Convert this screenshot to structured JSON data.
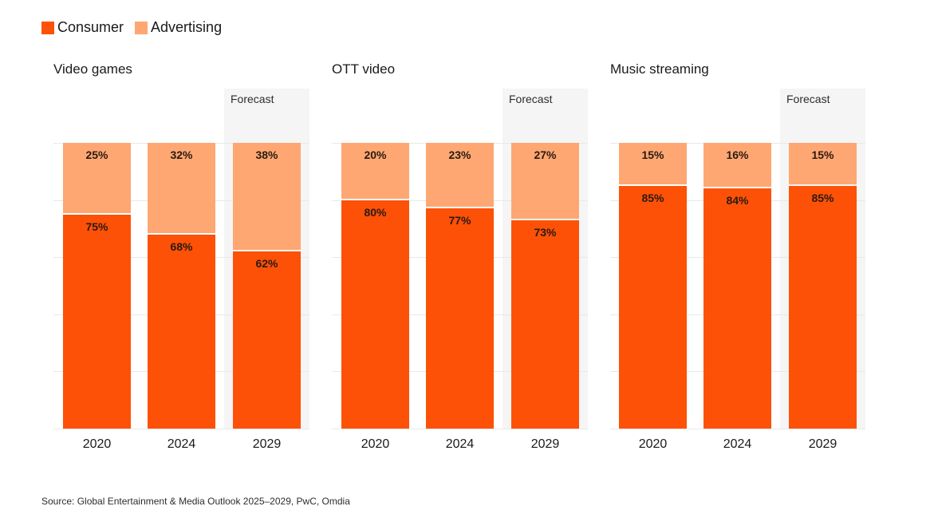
{
  "legend": {
    "items": [
      {
        "label": "Consumer",
        "color": "#fd5108"
      },
      {
        "label": "Advertising",
        "color": "#fea772"
      }
    ]
  },
  "source": "Source: Global Entertainment & Media Outlook 2025–2029, PwC, Omdia",
  "chart_data": [
    {
      "type": "bar",
      "stacked": true,
      "percent": true,
      "title": "Video games",
      "categories": [
        "2020",
        "2024",
        "2029"
      ],
      "forecast_label": "Forecast",
      "forecast_categories": [
        "2029"
      ],
      "ylim": [
        0,
        100
      ],
      "grid": true,
      "series": [
        {
          "name": "Consumer",
          "values": [
            75,
            68,
            62
          ],
          "labels": [
            "75%",
            "68%",
            "62%"
          ]
        },
        {
          "name": "Advertising",
          "values": [
            25,
            32,
            38
          ],
          "labels": [
            "25%",
            "32%",
            "38%"
          ]
        }
      ]
    },
    {
      "type": "bar",
      "stacked": true,
      "percent": true,
      "title": "OTT video",
      "categories": [
        "2020",
        "2024",
        "2029"
      ],
      "forecast_label": "Forecast",
      "forecast_categories": [
        "2029"
      ],
      "ylim": [
        0,
        100
      ],
      "grid": true,
      "series": [
        {
          "name": "Consumer",
          "values": [
            80,
            77,
            73
          ],
          "labels": [
            "80%",
            "77%",
            "73%"
          ]
        },
        {
          "name": "Advertising",
          "values": [
            20,
            23,
            27
          ],
          "labels": [
            "20%",
            "23%",
            "27%"
          ]
        }
      ]
    },
    {
      "type": "bar",
      "stacked": true,
      "percent": true,
      "title": "Music streaming",
      "categories": [
        "2020",
        "2024",
        "2029"
      ],
      "forecast_label": "Forecast",
      "forecast_categories": [
        "2029"
      ],
      "ylim": [
        0,
        100
      ],
      "grid": true,
      "series": [
        {
          "name": "Consumer",
          "values": [
            85,
            84,
            85
          ],
          "labels": [
            "85%",
            "84%",
            "85%"
          ]
        },
        {
          "name": "Advertising",
          "values": [
            15,
            16,
            15
          ],
          "labels": [
            "15%",
            "16%",
            "15%"
          ]
        }
      ]
    }
  ]
}
